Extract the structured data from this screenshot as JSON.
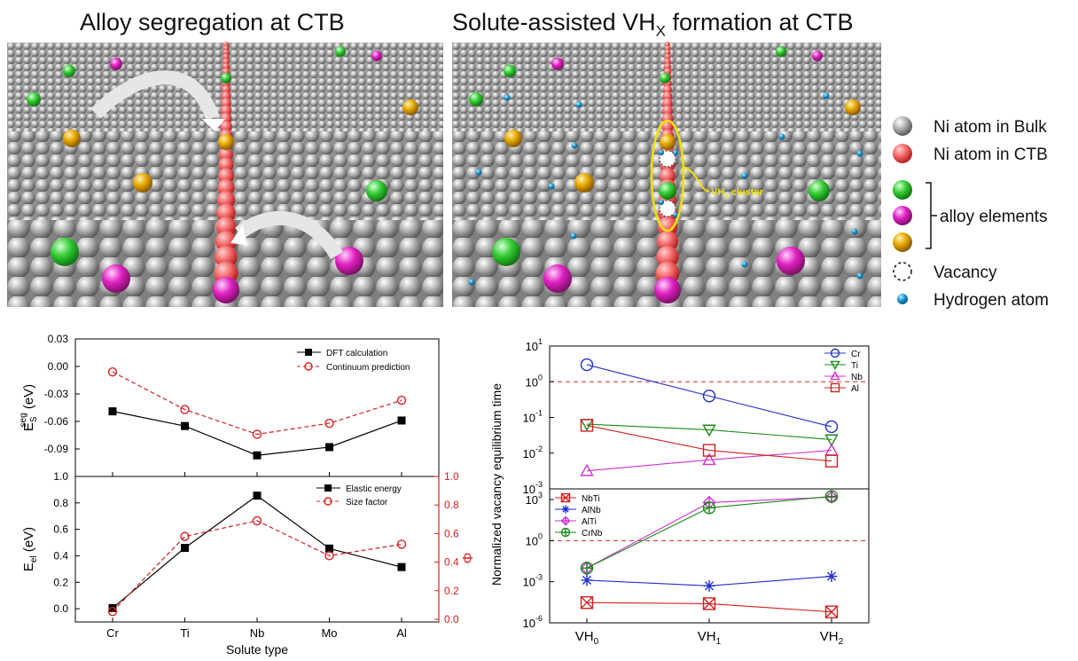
{
  "titles": {
    "left": "Alloy segregation at  CTB",
    "right_main": "Solute-assisted VH",
    "right_sub": "X",
    "right_tail": " formation at CTB"
  },
  "illustration": {
    "cluster_label_main": "VH",
    "cluster_label_sub": "x",
    "cluster_label_tail": " cluster"
  },
  "legend": {
    "items": [
      {
        "label": "Ni atom in Bulk",
        "color": "#9a9a9a"
      },
      {
        "label": "Ni atom in CTB",
        "color": "#e01010"
      },
      {
        "label": "alloy elements",
        "colors": [
          "#22c022",
          "#e020c0",
          "#e6a800"
        ]
      },
      {
        "label": "Vacancy",
        "color": "#ffffff"
      },
      {
        "label": "Hydrogen atom",
        "color": "#1a9ad6"
      }
    ]
  },
  "chart_data": [
    {
      "type": "line",
      "title": "",
      "xlabel": "",
      "ylabel_main": "E",
      "ylabel_sup": "seg",
      "ylabel_sub": "S",
      "ylabel_tail": " (eV)",
      "categories": [
        "Cr",
        "Ti",
        "Nb",
        "Mo",
        "Al"
      ],
      "ylim": [
        -0.12,
        0.03
      ],
      "yticks": [
        "0.03",
        "0.00",
        "-0.03",
        "-0.06",
        "-0.09"
      ],
      "series": [
        {
          "name": "DFT calculation",
          "values": [
            -0.049,
            -0.065,
            -0.097,
            -0.088,
            -0.059
          ],
          "color": "#000000"
        },
        {
          "name": "Continuum prediction",
          "values": [
            -0.006,
            -0.047,
            -0.074,
            -0.062,
            -0.037
          ],
          "color": "#d62020"
        }
      ],
      "legend_position": "top-right"
    },
    {
      "type": "line",
      "title": "",
      "xlabel": "Solute type",
      "ylabel_main": "E",
      "ylabel_sub": "el",
      "ylabel_tail": " (eV)",
      "y2label": "Φ",
      "categories": [
        "Cr",
        "Ti",
        "Nb",
        "Mo",
        "Al"
      ],
      "ylim": [
        -0.1,
        1.0
      ],
      "yticks": [
        "1.0",
        "0.8",
        "0.6",
        "0.4",
        "0.2",
        "0.0"
      ],
      "y2lim": [
        0.0,
        1.0
      ],
      "y2ticks": [
        "1.0",
        "0.8",
        "0.6",
        "0.4",
        "0.2",
        "0.0"
      ],
      "series": [
        {
          "name": "Elastic energy",
          "values": [
            0.005,
            0.46,
            0.855,
            0.455,
            0.315
          ],
          "color": "#000000",
          "axis": "left"
        },
        {
          "name": "Size factor",
          "values": [
            0.055,
            0.58,
            0.69,
            0.445,
            0.525
          ],
          "color": "#d62020",
          "axis": "right"
        }
      ],
      "legend_position": "top-right"
    },
    {
      "type": "line",
      "title": "",
      "ylabel": "Normalized vacancy equilibrium time",
      "x_main": "VH",
      "x_subs": [
        "0",
        "1",
        "2"
      ],
      "scale": "log",
      "yticks_top": [
        {
          "base": "10",
          "exp": "1"
        },
        {
          "base": "10",
          "exp": "0"
        },
        {
          "base": "10",
          "exp": "-1"
        },
        {
          "base": "10",
          "exp": "-2"
        },
        {
          "base": "10",
          "exp": "-3"
        }
      ],
      "yticks_bottom": [
        {
          "base": "10",
          "exp": "3"
        },
        {
          "base": "10",
          "exp": "0"
        },
        {
          "base": "10",
          "exp": "-3"
        },
        {
          "base": "10",
          "exp": "-6"
        }
      ],
      "reference_line": 1,
      "series_top": [
        {
          "name": "Cr",
          "values": [
            3.0,
            0.4,
            0.055
          ],
          "color": "#2030d0",
          "marker": "circle"
        },
        {
          "name": "Ti",
          "values": [
            0.065,
            0.045,
            0.024
          ],
          "color": "#1a8a1a",
          "marker": "triangle-down"
        },
        {
          "name": "Nb",
          "values": [
            0.0032,
            0.0065,
            0.012
          ],
          "color": "#d030d0",
          "marker": "triangle-up"
        },
        {
          "name": "Al",
          "values": [
            0.06,
            0.012,
            0.006
          ],
          "color": "#d02020",
          "marker": "square"
        }
      ],
      "series_bottom": [
        {
          "name": "NbTi",
          "values": [
            3e-05,
            2.5e-05,
            6.3e-06
          ],
          "color": "#d02020",
          "marker": "square-x"
        },
        {
          "name": "AlNb",
          "values": [
            0.0013,
            0.0005,
            0.0025
          ],
          "color": "#2030d0",
          "marker": "asterisk"
        },
        {
          "name": "AlTi",
          "values": [
            0.01,
            600,
            1500
          ],
          "color": "#d030d0",
          "marker": "diamond-plus"
        },
        {
          "name": "CrNb",
          "values": [
            0.01,
            250,
            1700
          ],
          "color": "#1a8a1a",
          "marker": "circle-plus"
        }
      ]
    }
  ]
}
